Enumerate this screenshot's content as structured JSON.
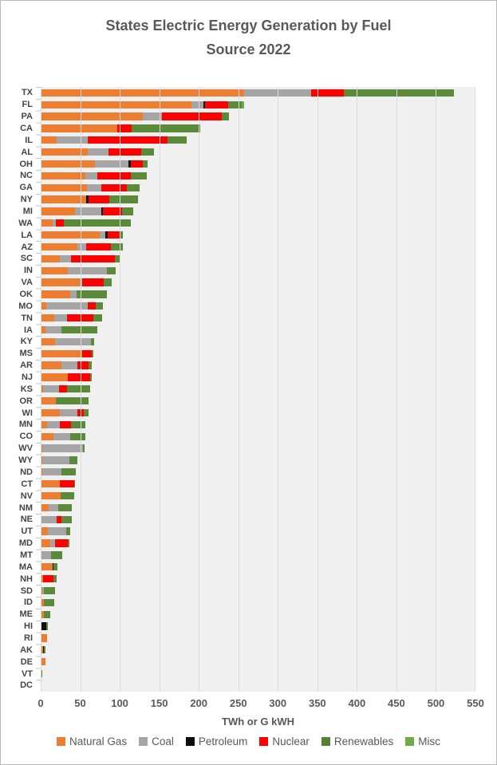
{
  "title": {
    "line1": "States Electric Energy  Generation by Fuel",
    "line2": "Source 2022"
  },
  "axis": {
    "xlabel": "TWh or G kWH",
    "tick_values": [
      0,
      50,
      100,
      150,
      200,
      250,
      300,
      350,
      400,
      450,
      500,
      550
    ],
    "max": 550
  },
  "colors": {
    "natural_gas": "#ED7D31",
    "coal": "#A5A5A5",
    "petroleum": "#0d0d0d",
    "nuclear": "#FF0000",
    "renewables": "#5a8a3a",
    "misc": "#70AD47",
    "plot_background": "#f0f0f0",
    "gridline": "#dadada",
    "text": "#595959"
  },
  "chart_data": {
    "type": "bar",
    "orientation": "horizontal-stacked",
    "title": "States Electric Energy  Generation by Fuel Source 2022",
    "xlabel": "TWh or G kWH",
    "xlim": [
      0,
      550
    ],
    "grid": true,
    "legend_position": "bottom",
    "categories": [
      "TX",
      "FL",
      "PA",
      "CA",
      "IL",
      "AL",
      "OH",
      "NC",
      "GA",
      "NY",
      "MI",
      "WA",
      "LA",
      "AZ",
      "SC",
      "IN",
      "VA",
      "OK",
      "MO",
      "TN",
      "IA",
      "KY",
      "MS",
      "AR",
      "NJ",
      "KS",
      "OR",
      "WI",
      "MN",
      "CO",
      "WV",
      "WY",
      "ND",
      "CT",
      "NV",
      "NM",
      "NE",
      "UT",
      "MD",
      "MT",
      "MA",
      "NH",
      "SD",
      "ID",
      "ME",
      "HI",
      "RI",
      "AK",
      "DE",
      "VT",
      "DC"
    ],
    "series": [
      {
        "name": "Natural Gas",
        "color": "#ED7D31",
        "values": [
          257,
          191,
          129,
          97,
          20,
          60,
          69,
          57,
          59,
          58,
          43,
          15,
          75,
          46,
          24,
          34,
          49,
          37,
          7,
          17,
          6,
          18,
          52,
          26,
          34,
          3,
          19,
          24,
          8,
          16,
          2,
          2,
          2,
          24,
          25,
          10,
          1,
          9,
          12,
          1,
          15,
          3,
          2,
          4,
          4,
          0,
          8,
          3,
          6,
          0,
          0.2
        ]
      },
      {
        "name": "Coal",
        "color": "#A5A5A5",
        "values": [
          85,
          15,
          24,
          0,
          40,
          26,
          42,
          15,
          18,
          0,
          34,
          4,
          7,
          12,
          14,
          50,
          3,
          8,
          53,
          16,
          20,
          46,
          0,
          20,
          0,
          20,
          0,
          22,
          16,
          21,
          51,
          34,
          24,
          0,
          0,
          12,
          19,
          23,
          6,
          12,
          0,
          0,
          2,
          0,
          0,
          0,
          0,
          0,
          0,
          0,
          0
        ]
      },
      {
        "name": "Petroleum",
        "color": "#0d0d0d",
        "values": [
          0,
          2,
          0,
          0,
          0,
          0,
          3,
          0,
          0,
          3,
          2,
          0,
          3,
          0,
          0,
          0,
          0,
          0,
          0,
          0,
          0,
          0,
          0,
          0,
          0,
          0,
          0,
          0,
          0,
          0,
          0,
          0,
          0,
          0,
          0,
          0,
          0,
          0,
          0,
          0,
          1,
          0,
          0,
          0,
          0,
          7,
          0,
          1,
          0,
          0,
          0
        ]
      },
      {
        "name": "Nuclear",
        "color": "#FF0000",
        "values": [
          41,
          29,
          76,
          18,
          100,
          41,
          15,
          42,
          32,
          26,
          24,
          10,
          15,
          31,
          56,
          0,
          28,
          0,
          10,
          34,
          0,
          0,
          13,
          15,
          29,
          10,
          0,
          9,
          14,
          0,
          0,
          0,
          0,
          18,
          0,
          0,
          6,
          0,
          16,
          0,
          0,
          13,
          0,
          0,
          0,
          0,
          0,
          0,
          0,
          0,
          0
        ]
      },
      {
        "name": "Renewables",
        "color": "#5a8a3a",
        "values": [
          140,
          17,
          9,
          87,
          25,
          16,
          6,
          20,
          16,
          36,
          14,
          85,
          4,
          15,
          6,
          11,
          10,
          39,
          9,
          11,
          46,
          4,
          2,
          4,
          2,
          30,
          42,
          6,
          19,
          20,
          3,
          10,
          18,
          1,
          17,
          17,
          13,
          5,
          2,
          14,
          5,
          4,
          14,
          13,
          8,
          2,
          0,
          2,
          0,
          2,
          0
        ]
      },
      {
        "name": "Misc",
        "color": "#70AD47",
        "values": [
          0,
          3,
          0,
          0,
          0,
          0,
          0,
          0,
          0,
          0,
          0,
          0,
          0,
          0,
          0,
          0,
          0,
          0,
          0,
          0,
          0,
          0,
          0,
          0,
          0,
          0,
          0,
          0,
          0,
          0,
          0,
          0,
          0,
          0,
          0,
          0,
          0,
          0,
          0,
          0,
          0,
          0,
          0,
          0,
          0,
          0,
          0,
          0,
          0,
          0,
          0
        ]
      }
    ]
  },
  "legend": {
    "items": [
      {
        "label": "Natural Gas",
        "color": "#ED7D31"
      },
      {
        "label": "Coal",
        "color": "#A5A5A5"
      },
      {
        "label": "Petroleum",
        "color": "#0d0d0d"
      },
      {
        "label": "Nuclear",
        "color": "#FF0000"
      },
      {
        "label": "Renewables",
        "color": "#548235"
      },
      {
        "label": "Misc",
        "color": "#70AD47"
      }
    ]
  }
}
